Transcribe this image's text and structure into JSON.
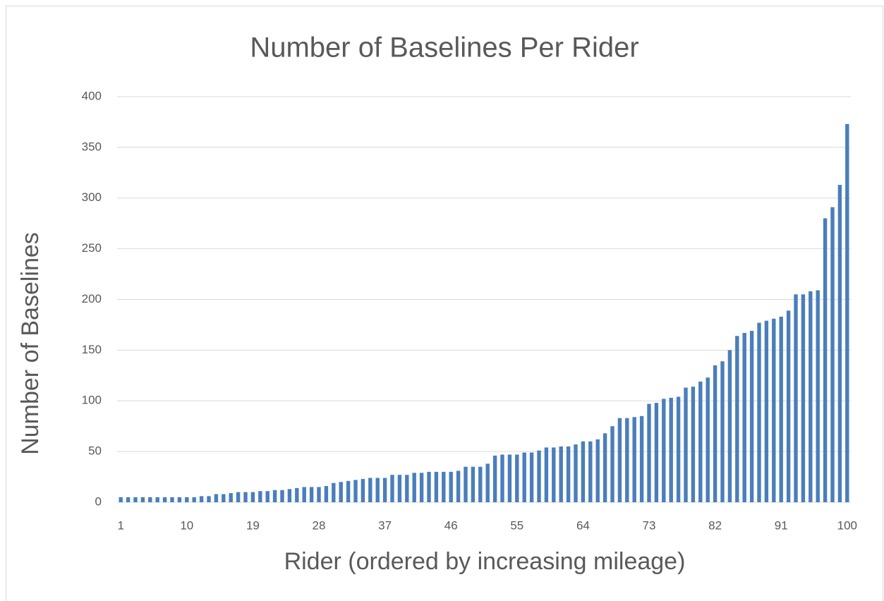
{
  "chart_data": {
    "type": "bar",
    "title": "Number of Baselines Per Rider",
    "x_label": "Rider (ordered by increasing mileage)",
    "y_label": "Number of Baselines",
    "categories": [
      1,
      null,
      null,
      null,
      null,
      null,
      null,
      null,
      null,
      10,
      null,
      null,
      null,
      null,
      null,
      null,
      null,
      null,
      19,
      null,
      null,
      null,
      null,
      null,
      null,
      null,
      null,
      28,
      null,
      null,
      null,
      null,
      null,
      null,
      null,
      null,
      37,
      null,
      null,
      null,
      null,
      null,
      null,
      null,
      null,
      46,
      null,
      null,
      null,
      null,
      null,
      null,
      null,
      null,
      55,
      null,
      null,
      null,
      null,
      null,
      null,
      null,
      null,
      64,
      null,
      null,
      null,
      null,
      null,
      null,
      null,
      null,
      73,
      null,
      null,
      null,
      null,
      null,
      null,
      null,
      null,
      82,
      null,
      null,
      null,
      null,
      null,
      null,
      null,
      null,
      91,
      null,
      null,
      null,
      null,
      null,
      null,
      null,
      null,
      100
    ],
    "values": [
      5,
      5,
      5,
      5,
      5,
      5,
      5,
      5,
      5,
      5,
      5,
      6,
      6,
      8,
      8,
      9,
      10,
      10,
      10,
      11,
      11,
      12,
      12,
      13,
      14,
      15,
      15,
      15,
      16,
      19,
      20,
      21,
      22,
      23,
      24,
      24,
      24,
      27,
      27,
      27,
      29,
      29,
      30,
      30,
      30,
      30,
      31,
      35,
      35,
      35,
      38,
      46,
      47,
      47,
      47,
      49,
      49,
      51,
      54,
      54,
      55,
      55,
      57,
      60,
      60,
      62,
      68,
      75,
      83,
      83,
      84,
      85,
      97,
      98,
      102,
      103,
      104,
      113,
      114,
      119,
      123,
      135,
      139,
      150,
      164,
      167,
      169,
      177,
      179,
      181,
      183,
      189,
      205,
      205,
      208,
      209,
      280,
      291,
      313,
      373
    ],
    "color": "#4a7ebb",
    "ylim": [
      0,
      400
    ],
    "yticks": [
      0,
      50,
      100,
      150,
      200,
      250,
      300,
      350,
      400
    ],
    "grid": true
  }
}
